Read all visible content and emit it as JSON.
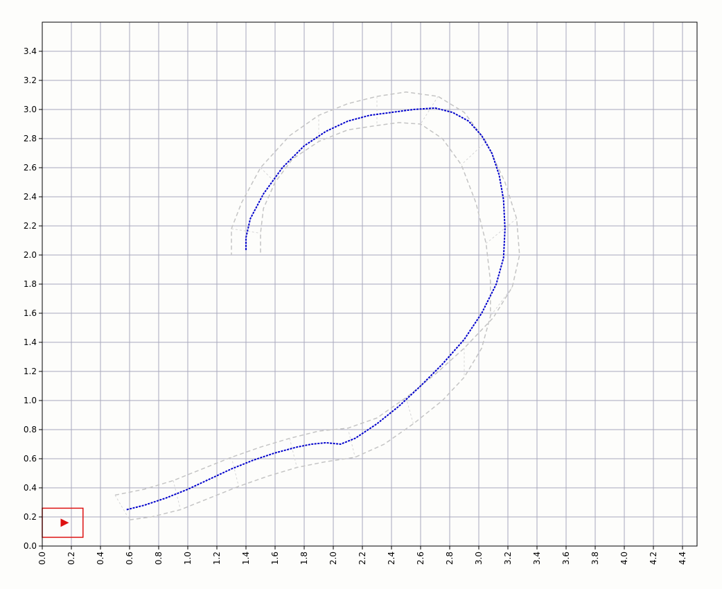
{
  "chart_data": {
    "type": "line",
    "title": "",
    "xlabel": "",
    "ylabel": "",
    "xlim": [
      0,
      4.5
    ],
    "ylim": [
      0,
      3.6
    ],
    "xticks": [
      "0.0",
      "0.2",
      "0.4",
      "0.6",
      "0.8",
      "1.0",
      "1.2",
      "1.4",
      "1.6",
      "1.8",
      "2.0",
      "2.2",
      "2.4",
      "2.6",
      "2.8",
      "3.0",
      "3.2",
      "3.4",
      "3.6",
      "3.8",
      "4.0",
      "4.2",
      "4.4"
    ],
    "yticks": [
      "0.0",
      "0.2",
      "0.4",
      "0.6",
      "0.8",
      "1.0",
      "1.2",
      "1.4",
      "1.6",
      "1.8",
      "2.0",
      "2.2",
      "2.4",
      "2.6",
      "2.8",
      "3.0",
      "3.2",
      "3.4"
    ],
    "grid": true,
    "colors": {
      "path": "#0000cc",
      "corridor": "#c4c4c4",
      "robot": "#dd1111",
      "grid": "#a8a8bc"
    },
    "series": [
      {
        "role": "path",
        "x": [
          0.58,
          0.7,
          0.85,
          1.0,
          1.15,
          1.3,
          1.45,
          1.6,
          1.75,
          1.85,
          1.95,
          2.05,
          2.15,
          2.3,
          2.45,
          2.6,
          2.75,
          2.9,
          3.02,
          3.12,
          3.17,
          3.18,
          3.17,
          3.14,
          3.09,
          3.02,
          2.93,
          2.82,
          2.7,
          2.55,
          2.4,
          2.25,
          2.1,
          1.95,
          1.8,
          1.65,
          1.52,
          1.43,
          1.4,
          1.4
        ],
        "y": [
          0.25,
          0.28,
          0.33,
          0.39,
          0.46,
          0.53,
          0.59,
          0.64,
          0.68,
          0.7,
          0.71,
          0.7,
          0.74,
          0.84,
          0.96,
          1.1,
          1.25,
          1.42,
          1.6,
          1.8,
          1.98,
          2.18,
          2.38,
          2.55,
          2.7,
          2.82,
          2.92,
          2.98,
          3.01,
          3.0,
          2.98,
          2.96,
          2.92,
          2.85,
          2.75,
          2.6,
          2.42,
          2.25,
          2.12,
          2.03
        ]
      },
      {
        "role": "corridor-left",
        "x": [
          0.5,
          0.7,
          0.9,
          1.1,
          1.3,
          1.5,
          1.7,
          1.9,
          2.1,
          2.3,
          2.5,
          2.7,
          2.9,
          3.1,
          3.23,
          3.28,
          3.26,
          3.18,
          3.05,
          2.9,
          2.72,
          2.5,
          2.3,
          2.1,
          1.9,
          1.7,
          1.5,
          1.37,
          1.3,
          1.3
        ],
        "y": [
          0.35,
          0.39,
          0.45,
          0.53,
          0.61,
          0.68,
          0.74,
          0.79,
          0.81,
          0.88,
          1.02,
          1.18,
          1.36,
          1.57,
          1.78,
          2.0,
          2.25,
          2.5,
          2.78,
          2.98,
          3.09,
          3.12,
          3.09,
          3.04,
          2.96,
          2.82,
          2.6,
          2.36,
          2.18,
          2.0
        ]
      },
      {
        "role": "corridor-right",
        "x": [
          0.6,
          0.75,
          0.95,
          1.15,
          1.35,
          1.55,
          1.75,
          1.95,
          2.15,
          2.35,
          2.55,
          2.75,
          2.9,
          3.02,
          3.08,
          3.08,
          3.05,
          2.98,
          2.88,
          2.75,
          2.6,
          2.45,
          2.3,
          2.1,
          1.9,
          1.72,
          1.6,
          1.52,
          1.5,
          1.5
        ],
        "y": [
          0.18,
          0.2,
          0.25,
          0.33,
          0.41,
          0.48,
          0.54,
          0.58,
          0.61,
          0.7,
          0.84,
          1.0,
          1.16,
          1.36,
          1.58,
          1.82,
          2.08,
          2.36,
          2.62,
          2.8,
          2.9,
          2.91,
          2.89,
          2.86,
          2.78,
          2.66,
          2.5,
          2.32,
          2.15,
          2.0
        ]
      }
    ],
    "robot": {
      "x": 0.15,
      "y": 0.16,
      "box_x": [
        0.0,
        0.28
      ],
      "box_y": [
        0.06,
        0.26
      ]
    }
  }
}
